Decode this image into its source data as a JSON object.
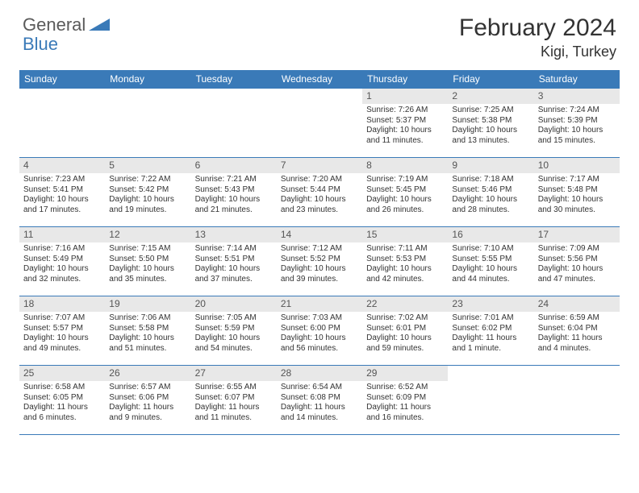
{
  "logo": {
    "general": "General",
    "blue": "Blue"
  },
  "title": "February 2024",
  "location": "Kigi, Turkey",
  "colors": {
    "header_bg": "#3a7ab8",
    "header_fg": "#ffffff",
    "daynum_bg": "#e8e8e8",
    "border": "#3a7ab8",
    "text": "#333333"
  },
  "weekdays": [
    "Sunday",
    "Monday",
    "Tuesday",
    "Wednesday",
    "Thursday",
    "Friday",
    "Saturday"
  ],
  "weeks": [
    [
      null,
      null,
      null,
      null,
      {
        "n": "1",
        "sr": "Sunrise: 7:26 AM",
        "ss": "Sunset: 5:37 PM",
        "dl": "Daylight: 10 hours and 11 minutes."
      },
      {
        "n": "2",
        "sr": "Sunrise: 7:25 AM",
        "ss": "Sunset: 5:38 PM",
        "dl": "Daylight: 10 hours and 13 minutes."
      },
      {
        "n": "3",
        "sr": "Sunrise: 7:24 AM",
        "ss": "Sunset: 5:39 PM",
        "dl": "Daylight: 10 hours and 15 minutes."
      }
    ],
    [
      {
        "n": "4",
        "sr": "Sunrise: 7:23 AM",
        "ss": "Sunset: 5:41 PM",
        "dl": "Daylight: 10 hours and 17 minutes."
      },
      {
        "n": "5",
        "sr": "Sunrise: 7:22 AM",
        "ss": "Sunset: 5:42 PM",
        "dl": "Daylight: 10 hours and 19 minutes."
      },
      {
        "n": "6",
        "sr": "Sunrise: 7:21 AM",
        "ss": "Sunset: 5:43 PM",
        "dl": "Daylight: 10 hours and 21 minutes."
      },
      {
        "n": "7",
        "sr": "Sunrise: 7:20 AM",
        "ss": "Sunset: 5:44 PM",
        "dl": "Daylight: 10 hours and 23 minutes."
      },
      {
        "n": "8",
        "sr": "Sunrise: 7:19 AM",
        "ss": "Sunset: 5:45 PM",
        "dl": "Daylight: 10 hours and 26 minutes."
      },
      {
        "n": "9",
        "sr": "Sunrise: 7:18 AM",
        "ss": "Sunset: 5:46 PM",
        "dl": "Daylight: 10 hours and 28 minutes."
      },
      {
        "n": "10",
        "sr": "Sunrise: 7:17 AM",
        "ss": "Sunset: 5:48 PM",
        "dl": "Daylight: 10 hours and 30 minutes."
      }
    ],
    [
      {
        "n": "11",
        "sr": "Sunrise: 7:16 AM",
        "ss": "Sunset: 5:49 PM",
        "dl": "Daylight: 10 hours and 32 minutes."
      },
      {
        "n": "12",
        "sr": "Sunrise: 7:15 AM",
        "ss": "Sunset: 5:50 PM",
        "dl": "Daylight: 10 hours and 35 minutes."
      },
      {
        "n": "13",
        "sr": "Sunrise: 7:14 AM",
        "ss": "Sunset: 5:51 PM",
        "dl": "Daylight: 10 hours and 37 minutes."
      },
      {
        "n": "14",
        "sr": "Sunrise: 7:12 AM",
        "ss": "Sunset: 5:52 PM",
        "dl": "Daylight: 10 hours and 39 minutes."
      },
      {
        "n": "15",
        "sr": "Sunrise: 7:11 AM",
        "ss": "Sunset: 5:53 PM",
        "dl": "Daylight: 10 hours and 42 minutes."
      },
      {
        "n": "16",
        "sr": "Sunrise: 7:10 AM",
        "ss": "Sunset: 5:55 PM",
        "dl": "Daylight: 10 hours and 44 minutes."
      },
      {
        "n": "17",
        "sr": "Sunrise: 7:09 AM",
        "ss": "Sunset: 5:56 PM",
        "dl": "Daylight: 10 hours and 47 minutes."
      }
    ],
    [
      {
        "n": "18",
        "sr": "Sunrise: 7:07 AM",
        "ss": "Sunset: 5:57 PM",
        "dl": "Daylight: 10 hours and 49 minutes."
      },
      {
        "n": "19",
        "sr": "Sunrise: 7:06 AM",
        "ss": "Sunset: 5:58 PM",
        "dl": "Daylight: 10 hours and 51 minutes."
      },
      {
        "n": "20",
        "sr": "Sunrise: 7:05 AM",
        "ss": "Sunset: 5:59 PM",
        "dl": "Daylight: 10 hours and 54 minutes."
      },
      {
        "n": "21",
        "sr": "Sunrise: 7:03 AM",
        "ss": "Sunset: 6:00 PM",
        "dl": "Daylight: 10 hours and 56 minutes."
      },
      {
        "n": "22",
        "sr": "Sunrise: 7:02 AM",
        "ss": "Sunset: 6:01 PM",
        "dl": "Daylight: 10 hours and 59 minutes."
      },
      {
        "n": "23",
        "sr": "Sunrise: 7:01 AM",
        "ss": "Sunset: 6:02 PM",
        "dl": "Daylight: 11 hours and 1 minute."
      },
      {
        "n": "24",
        "sr": "Sunrise: 6:59 AM",
        "ss": "Sunset: 6:04 PM",
        "dl": "Daylight: 11 hours and 4 minutes."
      }
    ],
    [
      {
        "n": "25",
        "sr": "Sunrise: 6:58 AM",
        "ss": "Sunset: 6:05 PM",
        "dl": "Daylight: 11 hours and 6 minutes."
      },
      {
        "n": "26",
        "sr": "Sunrise: 6:57 AM",
        "ss": "Sunset: 6:06 PM",
        "dl": "Daylight: 11 hours and 9 minutes."
      },
      {
        "n": "27",
        "sr": "Sunrise: 6:55 AM",
        "ss": "Sunset: 6:07 PM",
        "dl": "Daylight: 11 hours and 11 minutes."
      },
      {
        "n": "28",
        "sr": "Sunrise: 6:54 AM",
        "ss": "Sunset: 6:08 PM",
        "dl": "Daylight: 11 hours and 14 minutes."
      },
      {
        "n": "29",
        "sr": "Sunrise: 6:52 AM",
        "ss": "Sunset: 6:09 PM",
        "dl": "Daylight: 11 hours and 16 minutes."
      },
      null,
      null
    ]
  ]
}
